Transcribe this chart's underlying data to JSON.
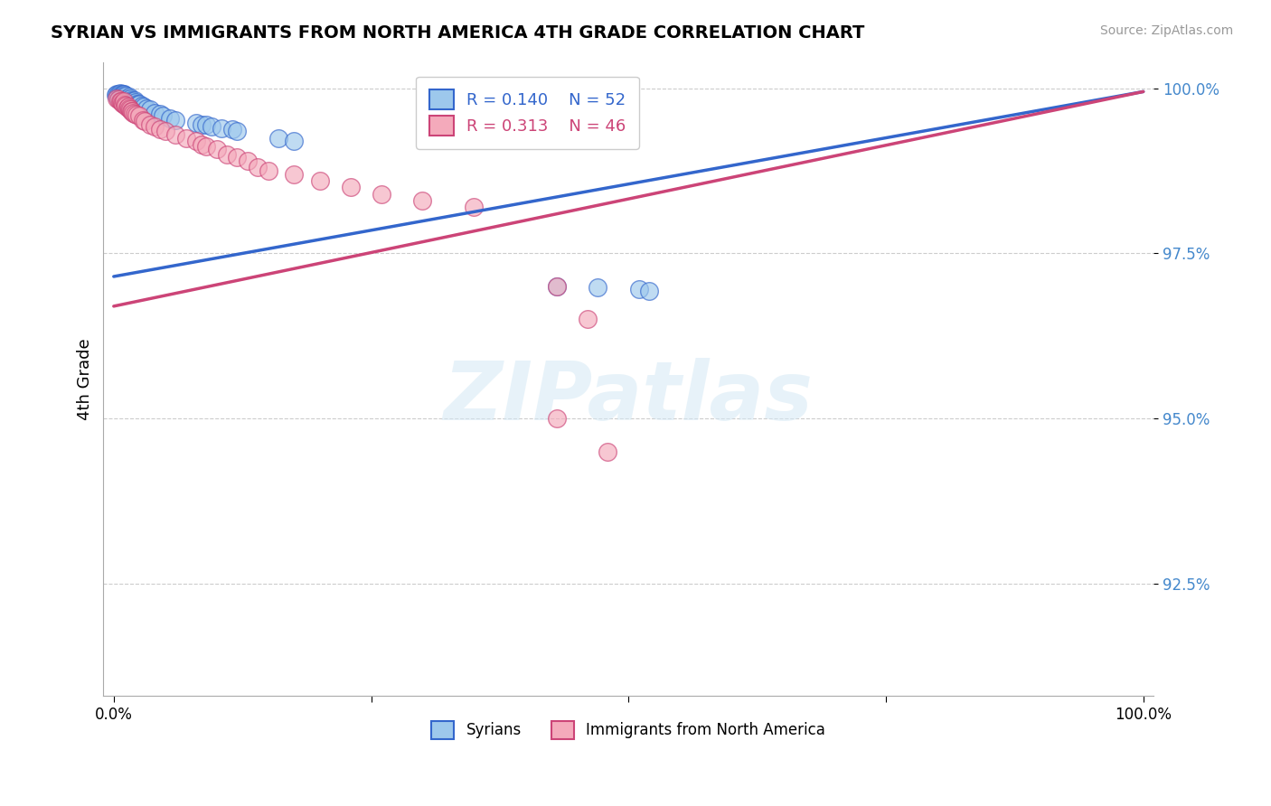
{
  "title": "SYRIAN VS IMMIGRANTS FROM NORTH AMERICA 4TH GRADE CORRELATION CHART",
  "source_text": "Source: ZipAtlas.com",
  "ylabel": "4th Grade",
  "color_blue": "#9DC8EC",
  "color_pink": "#F4AABB",
  "line_blue": "#3366CC",
  "line_pink": "#CC4477",
  "legend_r_blue": "0.140",
  "legend_n_blue": "52",
  "legend_r_pink": "0.313",
  "legend_n_pink": "46",
  "watermark": "ZIPatlas",
  "ylim_low": 0.908,
  "ylim_high": 1.004,
  "yticks": [
    0.925,
    0.95,
    0.975,
    1.0
  ],
  "ytick_labels": [
    "92.5%",
    "95.0%",
    "97.5%",
    "100.0%"
  ],
  "blue_x": [
    0.002,
    0.003,
    0.004,
    0.005,
    0.006,
    0.006,
    0.007,
    0.007,
    0.008,
    0.008,
    0.009,
    0.009,
    0.01,
    0.01,
    0.01,
    0.011,
    0.011,
    0.012,
    0.013,
    0.014,
    0.015,
    0.016,
    0.017,
    0.018,
    0.019,
    0.02,
    0.021,
    0.022,
    0.023,
    0.025,
    0.027,
    0.029,
    0.032,
    0.035,
    0.04,
    0.045,
    0.048,
    0.055,
    0.06,
    0.08,
    0.085,
    0.09,
    0.095,
    0.105,
    0.115,
    0.12,
    0.16,
    0.175,
    0.43,
    0.47,
    0.51,
    0.52
  ],
  "blue_y": [
    0.999,
    0.9992,
    0.9989,
    0.9991,
    0.9993,
    0.9988,
    0.9992,
    0.9986,
    0.999,
    0.9984,
    0.9991,
    0.9985,
    0.9992,
    0.9988,
    0.9982,
    0.999,
    0.9984,
    0.9989,
    0.9985,
    0.9983,
    0.9987,
    0.9984,
    0.9982,
    0.998,
    0.9978,
    0.9982,
    0.9979,
    0.9977,
    0.9975,
    0.9976,
    0.9973,
    0.9972,
    0.997,
    0.9968,
    0.9963,
    0.9961,
    0.9958,
    0.9955,
    0.9952,
    0.9948,
    0.9945,
    0.9945,
    0.9942,
    0.994,
    0.9938,
    0.9935,
    0.9925,
    0.992,
    0.97,
    0.9698,
    0.9696,
    0.9693
  ],
  "pink_x": [
    0.003,
    0.005,
    0.006,
    0.007,
    0.008,
    0.009,
    0.01,
    0.011,
    0.012,
    0.013,
    0.014,
    0.015,
    0.016,
    0.017,
    0.018,
    0.019,
    0.02,
    0.022,
    0.025,
    0.028,
    0.03,
    0.035,
    0.04,
    0.045,
    0.05,
    0.06,
    0.07,
    0.08,
    0.085,
    0.09,
    0.1,
    0.11,
    0.12,
    0.13,
    0.14,
    0.15,
    0.175,
    0.2,
    0.23,
    0.26,
    0.3,
    0.35,
    0.43,
    0.46,
    0.43,
    0.48
  ],
  "pink_y": [
    0.9985,
    0.9983,
    0.998,
    0.998,
    0.9978,
    0.9976,
    0.998,
    0.9975,
    0.9973,
    0.9971,
    0.9972,
    0.997,
    0.9968,
    0.9966,
    0.9965,
    0.9963,
    0.9962,
    0.996,
    0.9958,
    0.9952,
    0.995,
    0.9945,
    0.9942,
    0.9938,
    0.9935,
    0.993,
    0.9925,
    0.992,
    0.9915,
    0.9912,
    0.9908,
    0.99,
    0.9895,
    0.989,
    0.988,
    0.9875,
    0.987,
    0.986,
    0.985,
    0.984,
    0.983,
    0.982,
    0.97,
    0.965,
    0.95,
    0.945
  ]
}
